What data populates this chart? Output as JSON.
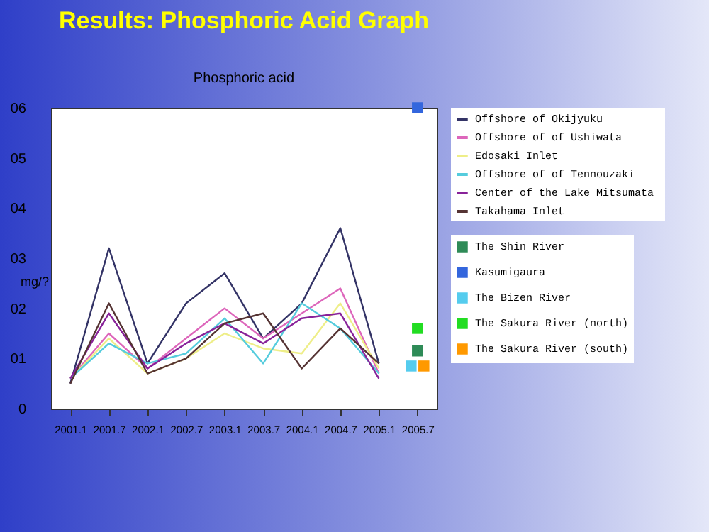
{
  "chart_data": {
    "type": "line",
    "title": "Results: Phosphoric Acid Graph",
    "subtitle": "Phosphoric acid",
    "ylabel": "mg/?",
    "categories": [
      "2001.1",
      "2001.7",
      "2002.1",
      "2002.7",
      "2003.1",
      "2003.7",
      "2004.1",
      "2004.7",
      "2005.1",
      "2005.7"
    ],
    "ylim": [
      0,
      6
    ],
    "yticks": [
      0,
      {
        "value": 1,
        "label": "01"
      },
      {
        "value": 2,
        "label": "02"
      },
      {
        "value": 3,
        "label": "03"
      },
      {
        "value": 4,
        "label": "04"
      },
      {
        "value": 5,
        "label": "05"
      },
      {
        "value": 6,
        "label": "06"
      }
    ],
    "grid": false,
    "legend": "right",
    "series": [
      {
        "name": "Offshore of Okijyuku",
        "color": "#333366",
        "values": [
          0.5,
          3.2,
          0.9,
          2.1,
          2.7,
          1.4,
          2.1,
          3.6,
          0.9,
          null
        ]
      },
      {
        "name": "Offshore of of Ushiwata",
        "color": "#dd66bb",
        "values": [
          0.6,
          1.5,
          0.8,
          1.4,
          2.0,
          1.4,
          1.9,
          2.4,
          0.7,
          null
        ]
      },
      {
        "name": "Edosaki Inlet",
        "color": "#eeee88",
        "values": [
          0.6,
          1.4,
          0.7,
          1.0,
          1.5,
          1.2,
          1.1,
          2.1,
          0.8,
          null
        ]
      },
      {
        "name": "Offshore of of Tennouzaki",
        "color": "#55ccdd",
        "values": [
          0.6,
          1.3,
          0.9,
          1.1,
          1.8,
          0.9,
          2.1,
          1.6,
          0.7,
          null
        ]
      },
      {
        "name": "Center  of the Lake Mitsumata",
        "color": "#882299",
        "values": [
          0.6,
          1.9,
          0.8,
          1.3,
          1.7,
          1.3,
          1.8,
          1.9,
          0.6,
          null
        ]
      },
      {
        "name": "Takahama Inlet",
        "color": "#553333",
        "values": [
          0.5,
          2.1,
          0.7,
          1.0,
          1.7,
          1.9,
          0.8,
          1.6,
          0.9,
          null
        ]
      },
      {
        "name": "The Shin River",
        "type": "scatter",
        "marker": "square",
        "color": "#2e8b57",
        "x": [
          "2005.7"
        ],
        "values": [
          1.15
        ]
      },
      {
        "name": "Kasumigaura",
        "type": "scatter",
        "marker": "square",
        "color": "#3366dd",
        "x": [
          "2005.7"
        ],
        "values": [
          6.0
        ]
      },
      {
        "name": "The Bizen River",
        "type": "scatter",
        "marker": "square",
        "color": "#55ccee",
        "x": [
          "2005.7"
        ],
        "values": [
          0.85
        ]
      },
      {
        "name": "The Sakura River (north)",
        "type": "scatter",
        "marker": "square",
        "color": "#22dd22",
        "x": [
          "2005.7"
        ],
        "values": [
          1.6
        ]
      },
      {
        "name": "The Sakura River (south)",
        "type": "scatter",
        "marker": "square",
        "color": "#ff9900",
        "x": [
          "2005.7"
        ],
        "values": [
          0.85
        ]
      }
    ]
  }
}
